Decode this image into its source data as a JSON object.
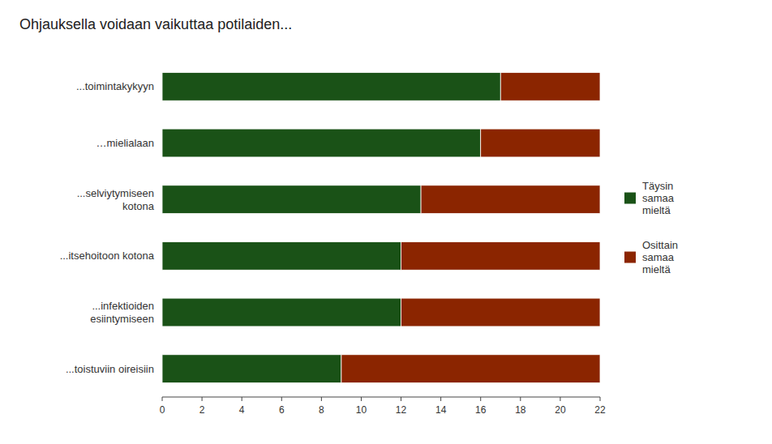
{
  "chart_data": {
    "type": "bar",
    "orientation": "horizontal",
    "stacked": true,
    "title": "Ohjauksella voidaan vaikuttaa potilaiden...",
    "categories": [
      "...toimintakykyyn",
      "…mielialaan",
      "...selviytymiseen\nkotona",
      "...itsehoitoon kotona",
      "...infektioiden\nesiintymiseen",
      "...toistuviin oireisiin"
    ],
    "series": [
      {
        "name": "Täysin\nsamaa\nmieltä",
        "color": "#1a5217",
        "values": [
          17,
          16,
          13,
          12,
          12,
          9
        ]
      },
      {
        "name": "Osittain\nsamaa\nmieltä",
        "color": "#8b2500",
        "values": [
          5,
          6,
          9,
          10,
          10,
          13
        ]
      }
    ],
    "xlim": [
      0,
      22
    ],
    "xticks": [
      0,
      2,
      4,
      6,
      8,
      10,
      12,
      14,
      16,
      18,
      20,
      22
    ],
    "grid": false,
    "legend": "right"
  }
}
